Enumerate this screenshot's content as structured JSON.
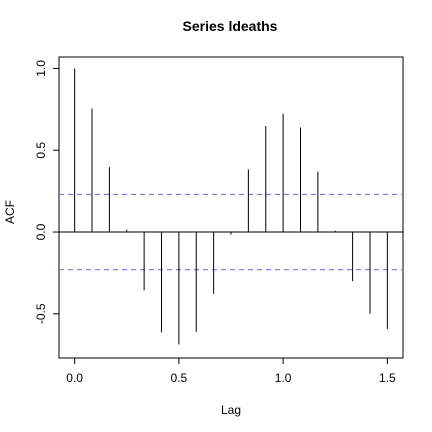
{
  "chart_data": {
    "type": "bar",
    "subtype": "acf",
    "title": "Series  ldeaths",
    "xlabel": "Lag",
    "ylabel": "ACF",
    "xlim": [
      -0.075,
      1.575
    ],
    "ylim": [
      -0.77,
      1.07
    ],
    "xticks": [
      0.0,
      0.5,
      1.0,
      1.5
    ],
    "xtick_labels": [
      "0.0",
      "0.5",
      "1.0",
      "1.5"
    ],
    "yticks": [
      -0.5,
      0.0,
      0.5,
      1.0
    ],
    "ytick_labels": [
      "-0.5",
      "0.0",
      "0.5",
      "1.0"
    ],
    "confidence_band": 0.23,
    "confidence_color": "#7777dd",
    "series": [
      {
        "x": [
          0.0,
          0.0833,
          0.1667,
          0.25,
          0.3333,
          0.4167,
          0.5,
          0.5833,
          0.6667,
          0.75,
          0.8333,
          0.9167,
          1.0,
          1.0833,
          1.1667,
          1.25,
          1.3333,
          1.4167,
          1.5
        ],
        "values": [
          1.0,
          0.755,
          0.397,
          0.015,
          -0.356,
          -0.613,
          -0.687,
          -0.61,
          -0.378,
          -0.015,
          0.383,
          0.648,
          0.723,
          0.639,
          0.37,
          0.008,
          -0.3,
          -0.5,
          -0.593
        ]
      }
    ],
    "grid": false
  }
}
